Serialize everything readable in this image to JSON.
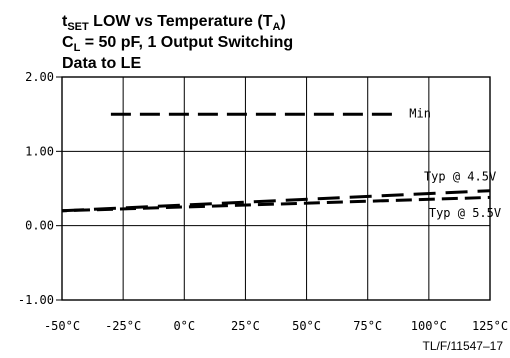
{
  "chart_data": {
    "type": "line",
    "title": {
      "line1_prefix": "t",
      "line1_sub": "SET",
      "line1_mid": " LOW vs Temperature (T",
      "line1_sub2": "A",
      "line1_end": ")",
      "line2_prefix": "C",
      "line2_sub": "L",
      "line2_rest": " = 50 pF, 1 Output Switching",
      "line3": "Data to LE"
    },
    "xlabel": "",
    "ylabel": "",
    "x_ticks": [
      -50,
      -25,
      0,
      25,
      50,
      75,
      100,
      125
    ],
    "x_tick_labels": [
      "-50°C",
      "-25°C",
      "0°C",
      "25°C",
      "50°C",
      "75°C",
      "100°C",
      "125°C"
    ],
    "xlim": [
      -50,
      125
    ],
    "y_ticks": [
      -1,
      0,
      1,
      2
    ],
    "y_tick_labels": [
      "-1.00",
      "0.00",
      "1.00",
      "2.00"
    ],
    "ylim": [
      -1,
      2
    ],
    "grid": true,
    "series": [
      {
        "name": "Min",
        "style": "dashed",
        "x": [
          -30,
          85
        ],
        "y": [
          1.5,
          1.5
        ]
      },
      {
        "name": "Typ @ 4.5V",
        "style": "dashed",
        "x": [
          -50,
          125
        ],
        "y": [
          0.2,
          0.47
        ]
      },
      {
        "name": "Typ @ 5.5V",
        "style": "dashed",
        "x": [
          -50,
          125
        ],
        "y": [
          0.2,
          0.38
        ]
      }
    ],
    "annotations": [
      {
        "text": "Min",
        "x": 92,
        "y": 1.51
      },
      {
        "text": "Typ @ 4.5V",
        "x": 98,
        "y": 0.66
      },
      {
        "text": "Typ @ 5.5V",
        "x": 100,
        "y": 0.17
      }
    ],
    "figure_code": "TL/F/11547–17"
  }
}
